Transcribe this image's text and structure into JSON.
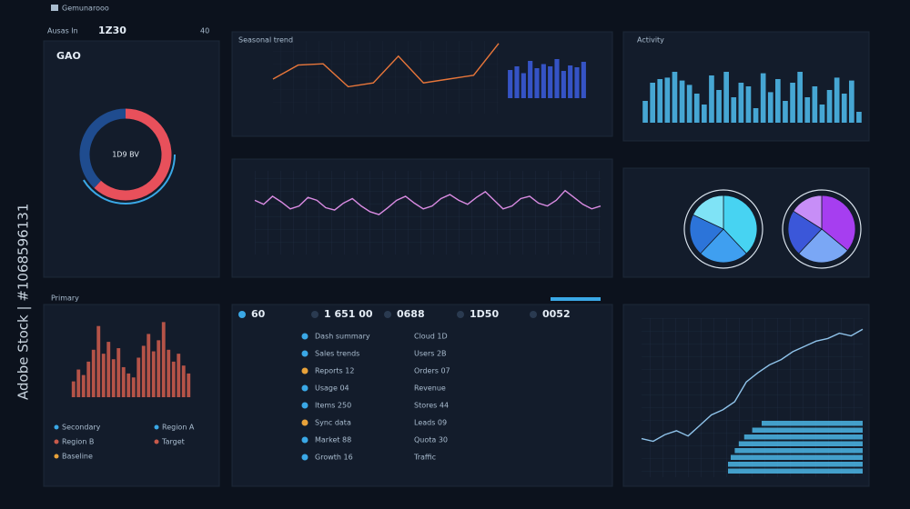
{
  "header": {
    "title": "Gemunarooo",
    "label": "Ausas In",
    "code": "1Z30",
    "count": "40"
  },
  "watermark": "Adobe Stock | #1068596131",
  "chart_data": [
    {
      "type": "gauge",
      "title": "GAO",
      "label": "1D9 BV",
      "values": [
        62,
        38
      ],
      "colors": [
        "#e8505b",
        "#1f4c8f"
      ]
    },
    {
      "type": "line",
      "title": "Seasonal trend",
      "values": [
        40,
        62,
        64,
        28,
        34,
        76,
        34,
        40,
        46,
        96
      ],
      "color": "#e8763a",
      "ylim": [
        0,
        100
      ]
    },
    {
      "type": "bar",
      "values": [
        62,
        70,
        55,
        82,
        66,
        75,
        70,
        86,
        60,
        72,
        68,
        80
      ],
      "color": "#3a5ad6",
      "ylim": [
        0,
        100
      ]
    },
    {
      "type": "bar",
      "title": "Activity",
      "values": [
        30,
        55,
        60,
        62,
        70,
        58,
        52,
        40,
        25,
        65,
        45,
        70,
        35,
        55,
        50,
        20,
        68,
        42,
        60,
        30,
        55,
        70,
        35,
        50,
        25,
        45,
        62,
        40,
        58,
        15
      ],
      "color": "#4cb6e6",
      "ylim": [
        0,
        100
      ]
    },
    {
      "type": "line",
      "values": [
        55,
        48,
        62,
        52,
        40,
        45,
        60,
        55,
        42,
        38,
        50,
        58,
        45,
        35,
        30,
        42,
        55,
        62,
        50,
        40,
        45,
        58,
        65,
        55,
        48,
        60,
        70,
        55,
        40,
        45,
        58,
        62,
        50,
        45,
        55,
        72,
        60,
        48,
        40,
        45
      ],
      "color": "#d98be2",
      "ylim": [
        0,
        100
      ]
    },
    {
      "type": "pie",
      "values": [
        38,
        24,
        20,
        18
      ],
      "colors": [
        "#47d3f2",
        "#3f9ff0",
        "#2c74d9",
        "#7fe3f6"
      ]
    },
    {
      "type": "pie",
      "values": [
        36,
        26,
        22,
        16
      ],
      "colors": [
        "#a63ef0",
        "#7aa7f5",
        "#3b57d9",
        "#c78ef7"
      ]
    },
    {
      "type": "bar",
      "values": [
        20,
        35,
        28,
        45,
        60,
        90,
        55,
        70,
        48,
        62,
        38,
        30,
        25,
        50,
        65,
        80,
        58,
        72,
        95,
        60,
        45,
        55,
        40,
        30
      ],
      "color": "#c85a4b",
      "ylim": [
        0,
        100
      ]
    },
    {
      "type": "line",
      "values": [
        12,
        10,
        15,
        18,
        14,
        22,
        30,
        34,
        40,
        55,
        62,
        68,
        72,
        78,
        82,
        86,
        88,
        92,
        90,
        95
      ],
      "color": "#8fc3ea",
      "ylim": [
        0,
        100
      ]
    },
    {
      "type": "hbar",
      "values": [
        75,
        82,
        88,
        92,
        95,
        98,
        100,
        100
      ],
      "color": "#4cb6e6",
      "xlim": [
        0,
        100
      ]
    }
  ],
  "list": {
    "header": [
      "60",
      "1 651 00",
      "0688",
      "1D50",
      "0052"
    ],
    "left": [
      "Dash summary",
      "Sales trends",
      "Reports 12",
      "Usage 04",
      "Items 250",
      "Sync data",
      "Market 88",
      "Growth 16"
    ],
    "right": [
      "Cloud 1D",
      "Users 2B",
      "Orders 07",
      "Revenue",
      "Stores 44",
      "Leads 09",
      "Quota 30",
      "Traffic"
    ]
  },
  "legend": [
    "Primary",
    "Secondary",
    "Region A",
    "Region B",
    "Target",
    "Baseline"
  ]
}
